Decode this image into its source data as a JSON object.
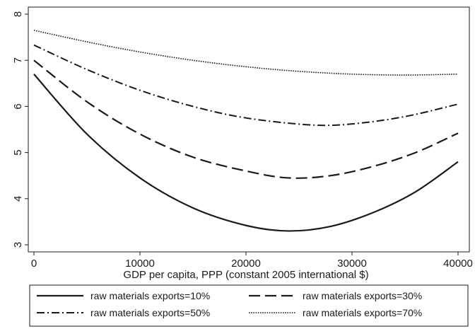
{
  "chart_data": {
    "type": "line",
    "title": "",
    "xlabel": "GDP per capita, PPP (constant 2005 international $)",
    "ylabel": "",
    "xlim": [
      0,
      40000
    ],
    "ylim": [
      3,
      8
    ],
    "x_ticks": [
      "0",
      "10000",
      "20000",
      "30000",
      "40000"
    ],
    "y_ticks": [
      "3",
      "4",
      "5",
      "6",
      "7",
      "8"
    ],
    "grid": false,
    "legend_position": "bottom",
    "series": [
      {
        "name": "raw materials exports=10%",
        "style": "solid",
        "color": "#1a1a1a",
        "x": [
          0,
          5000,
          10000,
          15000,
          20000,
          24000,
          28000,
          32000,
          36000,
          40000
        ],
        "y": [
          6.7,
          5.4,
          4.45,
          3.8,
          3.42,
          3.3,
          3.4,
          3.7,
          4.15,
          4.8
        ]
      },
      {
        "name": "raw materials exports=30%",
        "style": "longdash",
        "color": "#1a1a1a",
        "x": [
          0,
          5000,
          10000,
          15000,
          20000,
          24000,
          28000,
          32000,
          36000,
          40000
        ],
        "y": [
          7.0,
          6.1,
          5.4,
          4.9,
          4.6,
          4.45,
          4.5,
          4.7,
          5.0,
          5.42
        ]
      },
      {
        "name": "raw materials exports=50%",
        "style": "dashdot",
        "color": "#1a1a1a",
        "x": [
          0,
          5000,
          10000,
          15000,
          20000,
          26000,
          30000,
          35000,
          40000
        ],
        "y": [
          7.33,
          6.8,
          6.35,
          6.0,
          5.75,
          5.6,
          5.62,
          5.78,
          6.05
        ]
      },
      {
        "name": "raw materials exports=70%",
        "style": "dotted",
        "color": "#1a1a1a",
        "x": [
          0,
          5000,
          10000,
          15000,
          20000,
          25000,
          30000,
          35000,
          40000
        ],
        "y": [
          7.65,
          7.4,
          7.18,
          7.0,
          6.86,
          6.76,
          6.7,
          6.68,
          6.7
        ]
      }
    ]
  }
}
